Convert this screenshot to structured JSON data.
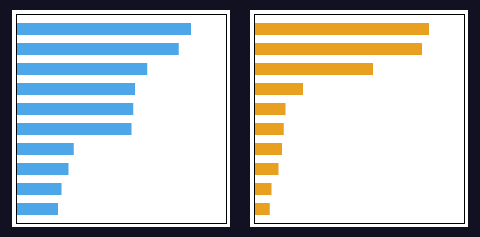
{
  "chart_data": [
    {
      "type": "bar",
      "orientation": "horizontal",
      "categories": [
        null,
        null,
        null,
        null,
        null,
        null,
        null,
        null,
        null,
        null
      ],
      "values": [
        100,
        93,
        75,
        68,
        67,
        66,
        33,
        30,
        26,
        24
      ],
      "color": "#4da6e8",
      "xlim": [
        0,
        120
      ],
      "xticks": [],
      "tick_labels": false
    },
    {
      "type": "bar",
      "orientation": "horizontal",
      "categories": [
        null,
        null,
        null,
        null,
        null,
        null,
        null,
        null,
        null,
        null
      ],
      "values": [
        100,
        96,
        68,
        28,
        18,
        17,
        16,
        14,
        10,
        9
      ],
      "color": "#e8a020",
      "xlim": [
        0,
        120
      ],
      "xticks": [],
      "tick_labels": false
    }
  ]
}
